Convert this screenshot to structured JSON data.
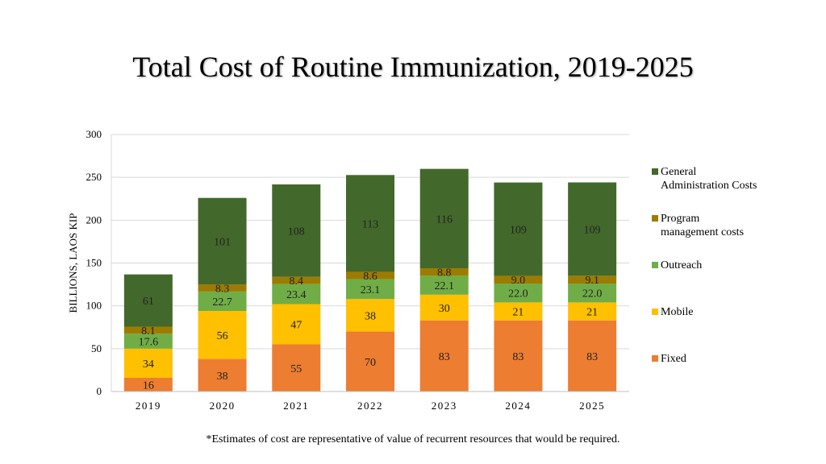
{
  "title": "Total Cost of Routine Immunization, 2019-2025",
  "footnote": "*Estimates of cost are representative of value of recurrent resources that would be required.",
  "colors": {
    "fixed": "#ED7D31",
    "mobile": "#FFC000",
    "outreach": "#70AD47",
    "program": "#9C7C00",
    "general": "#43682B"
  },
  "chart_data": {
    "type": "bar",
    "stacked": true,
    "title": "Total Cost of Routine Immunization, 2019-2025",
    "xlabel": "",
    "ylabel": "BILLIONS, LAOS KIP",
    "ylim": [
      0,
      300
    ],
    "yticks": [
      "0",
      "50",
      "100",
      "150",
      "200",
      "250",
      "300"
    ],
    "categories": [
      "2019",
      "2020",
      "2021",
      "2022",
      "2023",
      "2024",
      "2025"
    ],
    "series": [
      {
        "name": "Fixed",
        "key": "fixed",
        "values": [
          16,
          38,
          55,
          70,
          83,
          83,
          83
        ],
        "labels": [
          "16",
          "38",
          "55",
          "70",
          "83",
          "83",
          "83"
        ]
      },
      {
        "name": "Mobile",
        "key": "mobile",
        "values": [
          34,
          56,
          47,
          38,
          30,
          21,
          21
        ],
        "labels": [
          "34",
          "56",
          "47",
          "38",
          "30",
          "21",
          "21"
        ]
      },
      {
        "name": "Outreach",
        "key": "outreach",
        "values": [
          17.6,
          22.7,
          23.4,
          23.1,
          22.1,
          22.0,
          22.0
        ],
        "labels": [
          "17.6",
          "22.7",
          "23.4",
          "23.1",
          "22.1",
          "22.0",
          "22.0"
        ]
      },
      {
        "name": "Program management costs",
        "key": "program",
        "values": [
          8.1,
          8.3,
          8.4,
          8.6,
          8.8,
          9.0,
          9.1
        ],
        "labels": [
          "8.1",
          "8.3",
          "8.4",
          "8.6",
          "8.8",
          "9.0",
          "9.1"
        ]
      },
      {
        "name": "General Administration Costs",
        "key": "general",
        "values": [
          61,
          101,
          108,
          113,
          116,
          109,
          109
        ],
        "labels": [
          "61",
          "101",
          "108",
          "113",
          "116",
          "109",
          "109"
        ]
      }
    ],
    "legend": [
      {
        "key": "general",
        "lines": [
          "General",
          "Administration Costs"
        ]
      },
      {
        "key": "program",
        "lines": [
          "Program",
          "management costs"
        ]
      },
      {
        "key": "outreach",
        "lines": [
          "Outreach"
        ]
      },
      {
        "key": "mobile",
        "lines": [
          "Mobile"
        ]
      },
      {
        "key": "fixed",
        "lines": [
          "Fixed"
        ]
      }
    ],
    "legend_position": "right",
    "grid": true
  }
}
